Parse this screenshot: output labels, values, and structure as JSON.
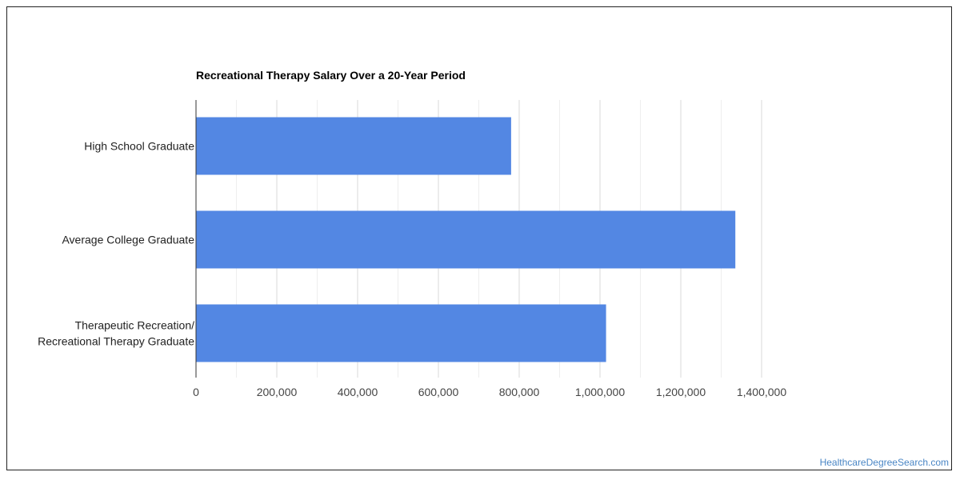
{
  "chart_data": {
    "type": "bar",
    "orientation": "horizontal",
    "title": "Recreational Therapy Salary Over a 20-Year Period",
    "categories": [
      [
        "High School Graduate"
      ],
      [
        "Average College Graduate"
      ],
      [
        "Therapeutic Recreation/",
        "Recreational Therapy Graduate"
      ]
    ],
    "values": [
      780000,
      1335000,
      1015000
    ],
    "xlim": [
      0,
      1400000
    ],
    "xticks": [
      0,
      200000,
      400000,
      600000,
      800000,
      1000000,
      1200000,
      1400000
    ],
    "xtick_labels": [
      "0",
      "200,000",
      "400,000",
      "600,000",
      "800,000",
      "1,000,000",
      "1,200,000",
      "1,400,000"
    ],
    "bar_color": "#5387e3",
    "grid": true
  },
  "credit": "HealthcareDegreeSearch.com"
}
